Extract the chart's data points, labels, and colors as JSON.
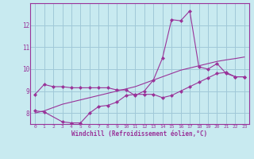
{
  "background_color": "#c8eaf0",
  "grid_color": "#a0c8d8",
  "line_color": "#993399",
  "xlabel": "Windchill (Refroidissement éolien,°C)",
  "xlim": [
    -0.5,
    23.5
  ],
  "ylim": [
    7.5,
    13.0
  ],
  "yticks": [
    8,
    9,
    10,
    11,
    12
  ],
  "xticks": [
    0,
    1,
    2,
    3,
    4,
    5,
    6,
    7,
    8,
    9,
    10,
    11,
    12,
    13,
    14,
    15,
    16,
    17,
    18,
    19,
    20,
    21,
    22,
    23
  ],
  "line1_x": [
    0,
    1,
    2,
    3,
    4,
    5,
    6,
    7,
    8,
    9,
    10,
    11,
    12,
    13,
    14,
    15,
    16,
    17,
    18,
    19,
    20,
    21,
    22,
    23
  ],
  "line1_y": [
    8.85,
    9.3,
    9.2,
    9.2,
    9.15,
    9.15,
    9.15,
    9.15,
    9.15,
    9.05,
    9.05,
    8.8,
    9.0,
    9.5,
    10.5,
    12.25,
    12.2,
    12.65,
    10.1,
    10.0,
    10.25,
    9.8,
    9.65,
    9.65
  ],
  "line2_x": [
    0,
    1,
    3,
    4,
    5,
    6,
    7,
    8,
    9,
    10,
    11,
    12,
    13,
    14,
    15,
    16,
    17,
    18,
    19,
    20,
    21,
    22,
    23
  ],
  "line2_y": [
    8.1,
    8.05,
    7.6,
    7.55,
    7.55,
    8.0,
    8.3,
    8.35,
    8.5,
    8.8,
    8.85,
    8.85,
    8.85,
    8.7,
    8.8,
    9.0,
    9.2,
    9.4,
    9.6,
    9.8,
    9.85,
    9.65,
    9.65
  ],
  "line3_x": [
    0,
    1,
    2,
    3,
    4,
    5,
    6,
    7,
    8,
    9,
    10,
    11,
    12,
    13,
    14,
    15,
    16,
    17,
    18,
    19,
    20,
    21,
    22,
    23
  ],
  "line3_y": [
    8.0,
    8.1,
    8.25,
    8.4,
    8.5,
    8.6,
    8.7,
    8.8,
    8.9,
    9.0,
    9.1,
    9.2,
    9.35,
    9.5,
    9.65,
    9.8,
    9.95,
    10.05,
    10.15,
    10.25,
    10.35,
    10.42,
    10.48,
    10.55
  ]
}
